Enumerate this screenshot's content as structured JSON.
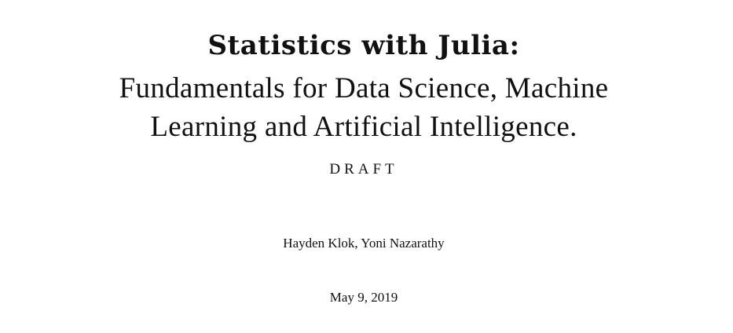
{
  "document": {
    "title": "Statistics with Julia:",
    "subtitle_lines": [
      "Fundamentals for Data Science, Machine",
      "Learning and Artificial Intelligence."
    ],
    "status": "DRAFT",
    "authors": "Hayden Klok, Yoni Nazarathy",
    "date": "May 9, 2019"
  }
}
